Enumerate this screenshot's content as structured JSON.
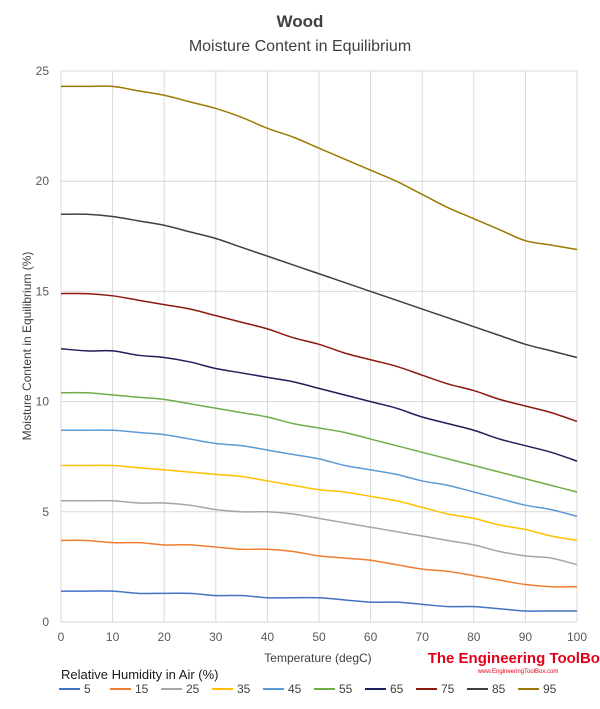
{
  "chart_data": {
    "type": "line",
    "title": "Wood",
    "subtitle": "Moisture Content in Equilibrium",
    "xlabel": "Temperature (degC)",
    "ylabel": "Moisture Content in Equilibrium (%)",
    "xlim": [
      0,
      100
    ],
    "ylim": [
      0,
      25
    ],
    "xticks": [
      0,
      10,
      20,
      30,
      40,
      50,
      60,
      70,
      80,
      90,
      100
    ],
    "yticks": [
      0,
      5,
      10,
      15,
      20,
      25
    ],
    "grid": true,
    "legend_title": "Relative Humidity in Air (%)",
    "legend_position": "bottom",
    "x": [
      0,
      5,
      10,
      15,
      20,
      25,
      30,
      35,
      40,
      45,
      50,
      55,
      60,
      65,
      70,
      75,
      80,
      85,
      90,
      95,
      100
    ],
    "series": [
      {
        "name": "5",
        "color": "#4472c4",
        "values": [
          1.4,
          1.4,
          1.4,
          1.3,
          1.3,
          1.3,
          1.2,
          1.2,
          1.1,
          1.1,
          1.1,
          1.0,
          0.9,
          0.9,
          0.8,
          0.7,
          0.7,
          0.6,
          0.5,
          0.5,
          0.5
        ]
      },
      {
        "name": "15",
        "color": "#ed7d31",
        "values": [
          3.7,
          3.7,
          3.6,
          3.6,
          3.5,
          3.5,
          3.4,
          3.3,
          3.3,
          3.2,
          3.0,
          2.9,
          2.8,
          2.6,
          2.4,
          2.3,
          2.1,
          1.9,
          1.7,
          1.6,
          1.6
        ]
      },
      {
        "name": "25",
        "color": "#a5a5a5",
        "values": [
          5.5,
          5.5,
          5.5,
          5.4,
          5.4,
          5.3,
          5.1,
          5.0,
          5.0,
          4.9,
          4.7,
          4.5,
          4.3,
          4.1,
          3.9,
          3.7,
          3.5,
          3.2,
          3.0,
          2.9,
          2.6
        ]
      },
      {
        "name": "35",
        "color": "#ffc000",
        "values": [
          7.1,
          7.1,
          7.1,
          7.0,
          6.9,
          6.8,
          6.7,
          6.6,
          6.4,
          6.2,
          6.0,
          5.9,
          5.7,
          5.5,
          5.2,
          4.9,
          4.7,
          4.4,
          4.2,
          3.9,
          3.7
        ]
      },
      {
        "name": "45",
        "color": "#5b9bd5",
        "values": [
          8.7,
          8.7,
          8.7,
          8.6,
          8.5,
          8.3,
          8.1,
          8.0,
          7.8,
          7.6,
          7.4,
          7.1,
          6.9,
          6.7,
          6.4,
          6.2,
          5.9,
          5.6,
          5.3,
          5.1,
          4.8
        ]
      },
      {
        "name": "55",
        "color": "#70ad47",
        "values": [
          10.4,
          10.4,
          10.3,
          10.2,
          10.1,
          9.9,
          9.7,
          9.5,
          9.3,
          9.0,
          8.8,
          8.6,
          8.3,
          8.0,
          7.7,
          7.4,
          7.1,
          6.8,
          6.5,
          6.2,
          5.9
        ]
      },
      {
        "name": "65",
        "color": "#1f1f5c",
        "values": [
          12.4,
          12.3,
          12.3,
          12.1,
          12.0,
          11.8,
          11.5,
          11.3,
          11.1,
          10.9,
          10.6,
          10.3,
          10.0,
          9.7,
          9.3,
          9.0,
          8.7,
          8.3,
          8.0,
          7.7,
          7.3
        ]
      },
      {
        "name": "75",
        "color": "#8b1a0e",
        "values": [
          14.9,
          14.9,
          14.8,
          14.6,
          14.4,
          14.2,
          13.9,
          13.6,
          13.3,
          12.9,
          12.6,
          12.2,
          11.9,
          11.6,
          11.2,
          10.8,
          10.5,
          10.1,
          9.8,
          9.5,
          9.1
        ]
      },
      {
        "name": "85",
        "color": "#404040",
        "values": [
          18.5,
          18.5,
          18.4,
          18.2,
          18.0,
          17.7,
          17.4,
          17.0,
          16.6,
          16.2,
          15.8,
          15.4,
          15.0,
          14.6,
          14.2,
          13.8,
          13.4,
          13.0,
          12.6,
          12.3,
          12.0
        ]
      },
      {
        "name": "95",
        "color": "#9c7a00",
        "values": [
          24.3,
          24.3,
          24.3,
          24.1,
          23.9,
          23.6,
          23.3,
          22.9,
          22.4,
          22.0,
          21.5,
          21.0,
          20.5,
          20.0,
          19.4,
          18.8,
          18.3,
          17.8,
          17.3,
          17.1,
          16.9
        ]
      }
    ]
  },
  "watermark": {
    "brand": "The Engineering ToolBox",
    "url": "www.EngineeringToolBox.com"
  }
}
